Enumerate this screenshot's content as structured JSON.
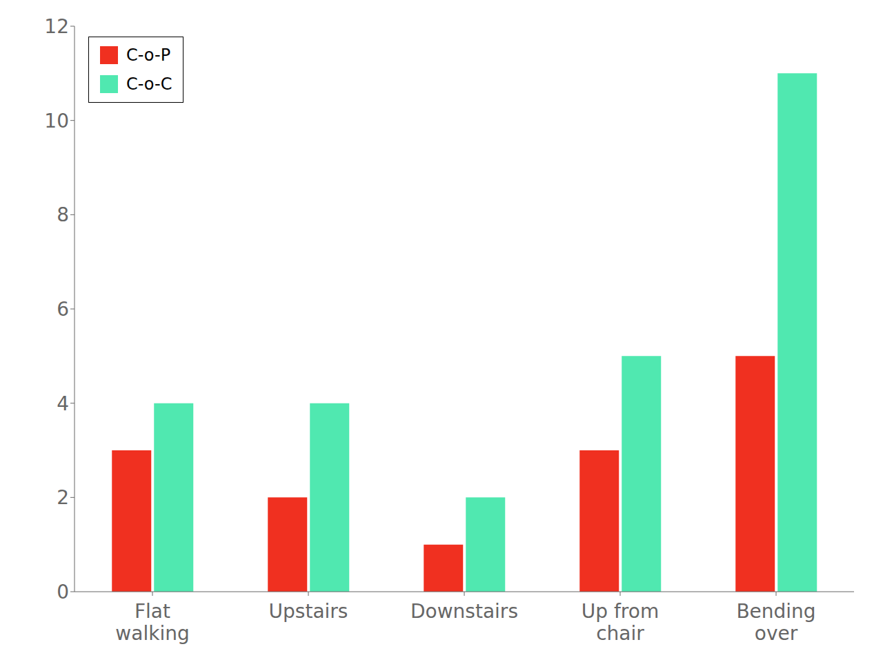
{
  "chart_data": {
    "type": "bar",
    "categories": [
      "Flat\nwalking",
      "Upstairs",
      "Downstairs",
      "Up from\nchair",
      "Bending\nover"
    ],
    "series": [
      {
        "name": "C-o-P",
        "color": "#f03020",
        "values": [
          3,
          2,
          1,
          3,
          5
        ]
      },
      {
        "name": "C-o-C",
        "color": "#50e8b0",
        "values": [
          4,
          4,
          2,
          5,
          11
        ]
      }
    ],
    "ylim": [
      0,
      12
    ],
    "yticks": [
      0,
      2,
      4,
      6,
      8,
      10,
      12
    ],
    "grid": false,
    "legend": "upper left"
  }
}
